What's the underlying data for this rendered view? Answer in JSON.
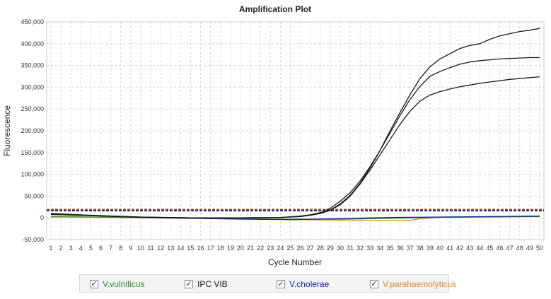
{
  "chart_data": {
    "type": "line",
    "title": "Amplification Plot",
    "xlabel": "Cycle Number",
    "ylabel": "Fluorescence",
    "xlim": [
      1,
      50
    ],
    "ylim": [
      -50000,
      450000
    ],
    "x_ticks": [
      1,
      2,
      3,
      4,
      5,
      6,
      7,
      8,
      9,
      10,
      11,
      12,
      13,
      14,
      15,
      16,
      17,
      18,
      19,
      20,
      21,
      22,
      23,
      24,
      25,
      26,
      27,
      28,
      29,
      30,
      31,
      32,
      33,
      34,
      35,
      36,
      37,
      38,
      39,
      40,
      41,
      42,
      43,
      44,
      45,
      46,
      47,
      48,
      49,
      50
    ],
    "y_ticks": [
      -50000,
      0,
      50000,
      100000,
      150000,
      200000,
      250000,
      300000,
      350000,
      400000,
      450000
    ],
    "y_tick_labels": [
      "-50,000",
      "0",
      "50,000",
      "100,000",
      "150,000",
      "200,000",
      "250,000",
      "300,000",
      "350,000",
      "400,000",
      "450,000"
    ],
    "grid": true,
    "thresholds": [
      {
        "value": 20000,
        "color": "#e07b39"
      },
      {
        "value": 18000,
        "color": "#1a1a8c"
      },
      {
        "value": 16000,
        "color": "#222222"
      }
    ],
    "series": [
      {
        "name": "V.parahaemolyticus",
        "color": "#e08a2a",
        "x": [
          1,
          5,
          10,
          15,
          20,
          25,
          30,
          35,
          37,
          38,
          40,
          45,
          50
        ],
        "values": [
          2000,
          1500,
          0,
          -1000,
          -2000,
          -4000,
          -5000,
          -6000,
          -6000,
          -2000,
          1000,
          3000,
          4000
        ]
      },
      {
        "name": "V.vulnificus",
        "color": "#2e8b2e",
        "x": [
          1,
          5,
          10,
          15,
          20,
          25,
          30,
          35,
          40,
          45,
          50
        ],
        "values": [
          3000,
          2000,
          500,
          -500,
          -2000,
          -3000,
          -3000,
          -1000,
          1000,
          2000,
          3000
        ]
      },
      {
        "name": "V.cholerae",
        "color": "#2020a0",
        "x": [
          1,
          5,
          10,
          15,
          20,
          25,
          30,
          35,
          40,
          45,
          50
        ],
        "values": [
          8000,
          5000,
          1000,
          -1000,
          -3000,
          -4000,
          -2000,
          1000,
          2000,
          3000,
          4000
        ]
      },
      {
        "name": "IPC VIB",
        "color": "#1a1a1a",
        "x": [
          1,
          5,
          10,
          15,
          20,
          24,
          26,
          27,
          28,
          29,
          30,
          31,
          32,
          33,
          34,
          35,
          36,
          37,
          38,
          39,
          40,
          41,
          42,
          43,
          44,
          45,
          46,
          47,
          48,
          49,
          50
        ],
        "values": [
          10000,
          6000,
          2000,
          0,
          0,
          1000,
          4000,
          7000,
          12000,
          22000,
          38000,
          58000,
          85000,
          118000,
          155000,
          195000,
          235000,
          272000,
          302000,
          325000,
          336000,
          345000,
          353000,
          358000,
          361000,
          363000,
          365000,
          366000,
          367000,
          368000,
          368000
        ]
      },
      {
        "name": "IPC VIB",
        "color": "#1a1a1a",
        "x": [
          1,
          5,
          10,
          15,
          20,
          24,
          26,
          27,
          28,
          29,
          30,
          31,
          32,
          33,
          34,
          35,
          36,
          37,
          38,
          39,
          40,
          41,
          42,
          43,
          44,
          45,
          46,
          47,
          48,
          49,
          50
        ],
        "values": [
          8000,
          5000,
          1500,
          0,
          0,
          1000,
          3000,
          6000,
          10000,
          18000,
          32000,
          52000,
          80000,
          115000,
          155000,
          200000,
          242000,
          283000,
          320000,
          347000,
          365000,
          377000,
          389000,
          396000,
          400000,
          410000,
          418000,
          423000,
          428000,
          431000,
          435000
        ]
      },
      {
        "name": "IPC VIB",
        "color": "#1a1a1a",
        "x": [
          1,
          5,
          10,
          15,
          20,
          24,
          26,
          27,
          28,
          29,
          30,
          31,
          32,
          33,
          34,
          35,
          36,
          37,
          38,
          39,
          40,
          41,
          42,
          43,
          44,
          45,
          46,
          47,
          48,
          49,
          50
        ],
        "values": [
          9000,
          5500,
          1800,
          0,
          0,
          800,
          3000,
          6000,
          10000,
          17000,
          30000,
          50000,
          78000,
          110000,
          145000,
          180000,
          215000,
          245000,
          268000,
          282000,
          290000,
          296000,
          301000,
          305000,
          309000,
          312000,
          315000,
          318000,
          320000,
          322000,
          324000
        ]
      }
    ]
  },
  "legend": {
    "items": [
      {
        "label": "V.vulnificus",
        "color": "#2e8b2e",
        "checked": "✓"
      },
      {
        "label": "IPC VIB",
        "color": "#1a1a1a",
        "checked": "✓"
      },
      {
        "label": "V.cholerae",
        "color": "#2020a0",
        "checked": "✓"
      },
      {
        "label": "V.parahaemolyticus",
        "color": "#e08a2a",
        "checked": "✓"
      }
    ]
  }
}
